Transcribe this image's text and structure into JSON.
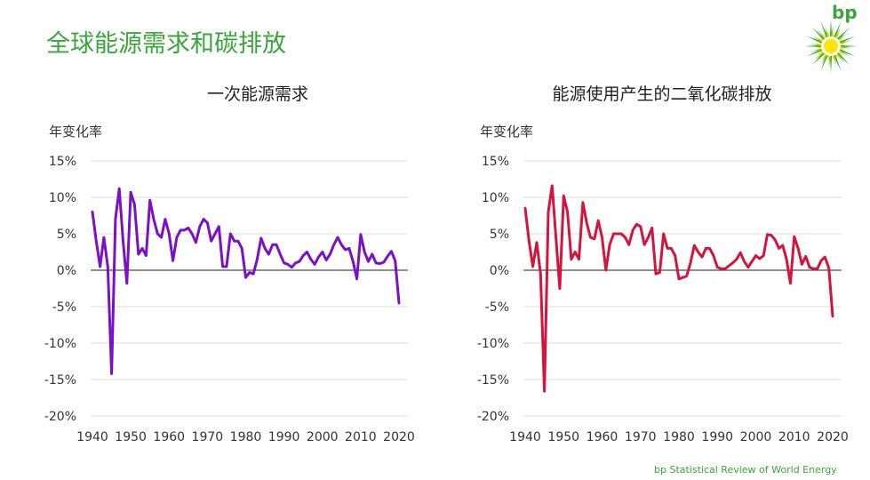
{
  "page": {
    "title": "全球能源需求和碳排放",
    "logo_text": "bp",
    "footer": "bp Statistical Review of World Energy"
  },
  "colors": {
    "title_green": "#3aa63a",
    "series1": "#7a10c8",
    "series2": "#d4143c",
    "grid": "#dddddd",
    "zero_line": "#222222"
  },
  "chart_data": [
    {
      "type": "line",
      "title": "一次能源需求",
      "ylabel": "年变化率",
      "xlim": [
        1940,
        2020
      ],
      "ylim": [
        -20,
        15
      ],
      "x_ticks": [
        1940,
        1950,
        1960,
        1970,
        1980,
        1990,
        2000,
        2010,
        2020
      ],
      "y_ticks": [
        "15%",
        "10%",
        "5%",
        "0%",
        "-5%",
        "-10%",
        "-15%",
        "-20%"
      ],
      "grid": true,
      "series": [
        {
          "x": [
            1940,
            1941,
            1942,
            1943,
            1944,
            1945,
            1946,
            1947,
            1948,
            1949,
            1950,
            1951,
            1952,
            1953,
            1954,
            1955,
            1956,
            1957,
            1958,
            1959,
            1960,
            1961,
            1962,
            1963,
            1964,
            1965,
            1966,
            1967,
            1968,
            1969,
            1970,
            1971,
            1972,
            1973,
            1974,
            1975,
            1976,
            1977,
            1978,
            1979,
            1980,
            1981,
            1982,
            1983,
            1984,
            1985,
            1986,
            1987,
            1988,
            1989,
            1990,
            1991,
            1992,
            1993,
            1994,
            1995,
            1996,
            1997,
            1998,
            1999,
            2000,
            2001,
            2002,
            2003,
            2004,
            2005,
            2006,
            2007,
            2008,
            2009,
            2010,
            2011,
            2012,
            2013,
            2014,
            2015,
            2016,
            2017,
            2018,
            2019,
            2020
          ],
          "y": [
            8.0,
            4.0,
            0.5,
            4.5,
            0.5,
            -14.2,
            7.0,
            11.2,
            4.0,
            -1.8,
            10.7,
            9.0,
            2.2,
            3.0,
            2.0,
            9.6,
            7.0,
            5.0,
            4.5,
            7.0,
            5.0,
            1.3,
            4.5,
            5.5,
            5.5,
            5.8,
            5.0,
            3.8,
            6.0,
            7.0,
            6.5,
            4.0,
            5.0,
            6.0,
            0.5,
            0.5,
            5.0,
            4.0,
            4.0,
            3.0,
            -1.0,
            -0.3,
            -0.5,
            1.5,
            4.4,
            3.0,
            2.2,
            3.5,
            3.5,
            2.2,
            1.0,
            0.8,
            0.4,
            1.0,
            1.2,
            2.0,
            2.5,
            1.5,
            0.8,
            1.8,
            2.5,
            1.4,
            2.2,
            3.5,
            4.5,
            3.5,
            2.8,
            3.0,
            1.2,
            -1.2,
            4.9,
            2.5,
            1.2,
            2.2,
            1.0,
            0.9,
            1.1,
            1.9,
            2.6,
            1.3,
            -4.5
          ]
        }
      ]
    },
    {
      "type": "line",
      "title": "能源使用产生的二氧化碳排放",
      "ylabel": "年变化率",
      "xlim": [
        1940,
        2020
      ],
      "ylim": [
        -20,
        15
      ],
      "x_ticks": [
        1940,
        1950,
        1960,
        1970,
        1980,
        1990,
        2000,
        2010,
        2020
      ],
      "y_ticks": [
        "15%",
        "10%",
        "5%",
        "0%",
        "-5%",
        "-10%",
        "-15%",
        "-20%"
      ],
      "grid": true,
      "series": [
        {
          "x": [
            1940,
            1941,
            1942,
            1943,
            1944,
            1945,
            1946,
            1947,
            1948,
            1949,
            1950,
            1951,
            1952,
            1953,
            1954,
            1955,
            1956,
            1957,
            1958,
            1959,
            1960,
            1961,
            1962,
            1963,
            1964,
            1965,
            1966,
            1967,
            1968,
            1969,
            1970,
            1971,
            1972,
            1973,
            1974,
            1975,
            1976,
            1977,
            1978,
            1979,
            1980,
            1981,
            1982,
            1983,
            1984,
            1985,
            1986,
            1987,
            1988,
            1989,
            1990,
            1991,
            1992,
            1993,
            1994,
            1995,
            1996,
            1997,
            1998,
            1999,
            2000,
            2001,
            2002,
            2003,
            2004,
            2005,
            2006,
            2007,
            2008,
            2009,
            2010,
            2011,
            2012,
            2013,
            2014,
            2015,
            2016,
            2017,
            2018,
            2019,
            2020
          ],
          "y": [
            8.5,
            4.0,
            0.5,
            3.8,
            -0.5,
            -16.6,
            8.0,
            11.6,
            4.5,
            -2.5,
            10.2,
            8.0,
            1.5,
            2.5,
            1.5,
            9.3,
            6.5,
            4.5,
            4.3,
            6.8,
            4.5,
            0.0,
            3.5,
            5.0,
            5.0,
            5.0,
            4.5,
            3.5,
            5.5,
            6.3,
            6.0,
            3.5,
            4.5,
            5.8,
            -0.5,
            -0.3,
            5.0,
            3.0,
            3.0,
            2.0,
            -1.2,
            -1.0,
            -0.8,
            1.0,
            3.4,
            2.5,
            1.8,
            3.0,
            3.0,
            2.0,
            0.4,
            0.2,
            0.2,
            0.6,
            1.0,
            1.5,
            2.4,
            1.2,
            0.4,
            1.2,
            2.0,
            1.6,
            2.0,
            4.9,
            4.8,
            4.2,
            3.0,
            3.4,
            1.5,
            -1.8,
            4.6,
            3.0,
            0.8,
            1.9,
            0.4,
            0.2,
            0.2,
            1.3,
            1.8,
            0.3,
            -6.3
          ]
        }
      ]
    }
  ]
}
